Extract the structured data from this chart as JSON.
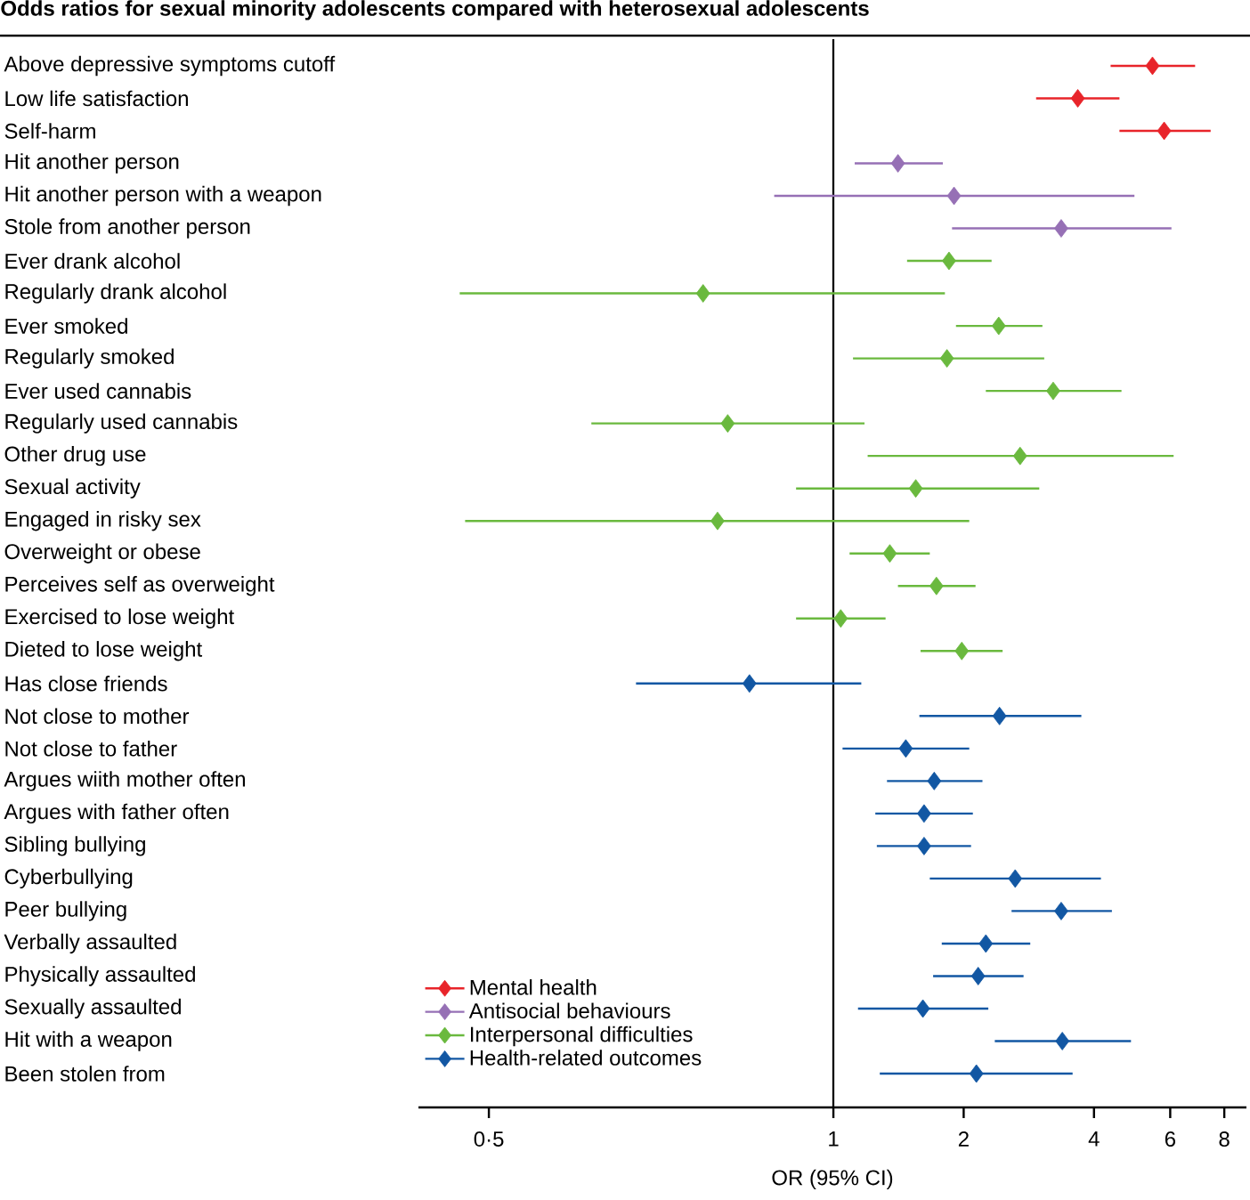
{
  "chart_data": {
    "type": "scatter",
    "orientation": "horizontal",
    "title": "Odds ratios for sexual minority adolescents compared with heterosexual adolescents",
    "xlabel": "OR (95% CI)",
    "categories": [
      "Above depressive symptoms cutoff",
      "Low life satisfaction",
      "Self-harm",
      "Hit another person",
      "Hit another person with a weapon",
      "Stole from another person",
      "Ever drank alcohol",
      "Regularly drank alcohol",
      "Ever smoked",
      "Regularly smoked",
      "Ever used cannabis",
      "Regularly used cannabis",
      "Other drug use",
      "Sexual activity",
      "Engaged in risky sex",
      "Overweight or obese",
      "Perceives self as overweight",
      "Exercised to lose weight",
      "Dieted to lose weight",
      "Has close friends",
      "Not close to mother",
      "Not close to father",
      "Argues wiith mother often",
      "Argues with father often",
      "Sibling bullying",
      "Cyberbullying",
      "Peer bullying",
      "Verbally assaulted",
      "Physically assaulted",
      "Sexually assaulted",
      "Hit with a weapon",
      "Been stolen from"
    ],
    "series": [
      {
        "name": "Mental health",
        "color": "#e8242a",
        "values": [
          5.46,
          3.67,
          5.81,
          null,
          null,
          null,
          null,
          null,
          null,
          null,
          null,
          null,
          null,
          null,
          null,
          null,
          null,
          null,
          null,
          null,
          null,
          null,
          null,
          null,
          null,
          null,
          null,
          null,
          null,
          null,
          null,
          null
        ],
        "errors": [
          [
            4.37,
            6.85
          ],
          [
            2.94,
            4.58
          ],
          [
            4.58,
            7.44
          ],
          null,
          null,
          null,
          null,
          null,
          null,
          null,
          null,
          null,
          null,
          null,
          null,
          null,
          null,
          null,
          null,
          null,
          null,
          null,
          null,
          null,
          null,
          null,
          null,
          null,
          null,
          null,
          null,
          null
        ]
      },
      {
        "name": "Antisocial behaviours",
        "color": "#9670b5",
        "values": [
          null,
          null,
          null,
          1.41,
          1.9,
          3.36,
          null,
          null,
          null,
          null,
          null,
          null,
          null,
          null,
          null,
          null,
          null,
          null,
          null,
          null,
          null,
          null,
          null,
          null,
          null,
          null,
          null,
          null,
          null,
          null,
          null,
          null
        ],
        "errors": [
          null,
          null,
          null,
          [
            1.12,
            1.79
          ],
          [
            0.73,
            4.96
          ],
          [
            1.88,
            6.04
          ],
          null,
          null,
          null,
          null,
          null,
          null,
          null,
          null,
          null,
          null,
          null,
          null,
          null,
          null,
          null,
          null,
          null,
          null,
          null,
          null,
          null,
          null,
          null,
          null,
          null,
          null
        ]
      },
      {
        "name": "Interpersonal difficulties",
        "color": "#6ab93e",
        "values": [
          null,
          null,
          null,
          null,
          null,
          null,
          1.85,
          0.5,
          2.41,
          1.83,
          3.22,
          0.57,
          2.7,
          1.55,
          0.54,
          1.35,
          1.73,
          1.04,
          1.98,
          null,
          null,
          null,
          null,
          null,
          null,
          null,
          null,
          null,
          null,
          null,
          null,
          null
        ],
        "errors": [
          null,
          null,
          null,
          null,
          null,
          null,
          [
            1.48,
            2.32
          ],
          [
            0.137,
            1.81
          ],
          [
            1.92,
            3.04
          ],
          [
            1.11,
            3.07
          ],
          [
            2.25,
            4.63
          ],
          [
            0.276,
            1.18
          ],
          [
            1.2,
            6.11
          ],
          [
            0.82,
            2.99
          ],
          [
            0.141,
            2.06
          ],
          [
            1.09,
            1.67
          ],
          [
            1.41,
            2.13
          ],
          [
            0.82,
            1.32
          ],
          [
            1.59,
            2.46
          ],
          null,
          null,
          null,
          null,
          null,
          null,
          null,
          null,
          null,
          null,
          null,
          null,
          null
        ]
      },
      {
        "name": "Health-related outcomes",
        "color": "#1257a3",
        "values": [
          null,
          null,
          null,
          null,
          null,
          null,
          null,
          null,
          null,
          null,
          null,
          null,
          null,
          null,
          null,
          null,
          null,
          null,
          null,
          0.64,
          2.42,
          1.47,
          1.71,
          1.62,
          1.62,
          2.63,
          3.36,
          2.25,
          2.16,
          1.61,
          3.38,
          2.14
        ],
        "errors": [
          null,
          null,
          null,
          null,
          null,
          null,
          null,
          null,
          null,
          null,
          null,
          null,
          null,
          null,
          null,
          null,
          null,
          null,
          null,
          [
            0.35,
            1.16
          ],
          [
            1.58,
            3.74
          ],
          [
            1.05,
            2.06
          ],
          [
            1.33,
            2.21
          ],
          [
            1.25,
            2.1
          ],
          [
            1.26,
            2.08
          ],
          [
            1.67,
            4.15
          ],
          [
            2.58,
            4.4
          ],
          [
            1.78,
            2.85
          ],
          [
            1.7,
            2.75
          ],
          [
            1.14,
            2.28
          ],
          [
            2.36,
            4.87
          ],
          [
            1.28,
            3.57
          ]
        ]
      }
    ],
    "log": "x",
    "xlim": [
      0.11,
      9
    ],
    "xticks": [
      {
        "value": 0.16,
        "label": "0·5"
      },
      1,
      2,
      4,
      6,
      8
    ],
    "ref_lines": [
      {
        "axis": "x",
        "value": 1,
        "color": "#000000"
      }
    ],
    "marker": "diamond",
    "legend": "bottom left"
  }
}
